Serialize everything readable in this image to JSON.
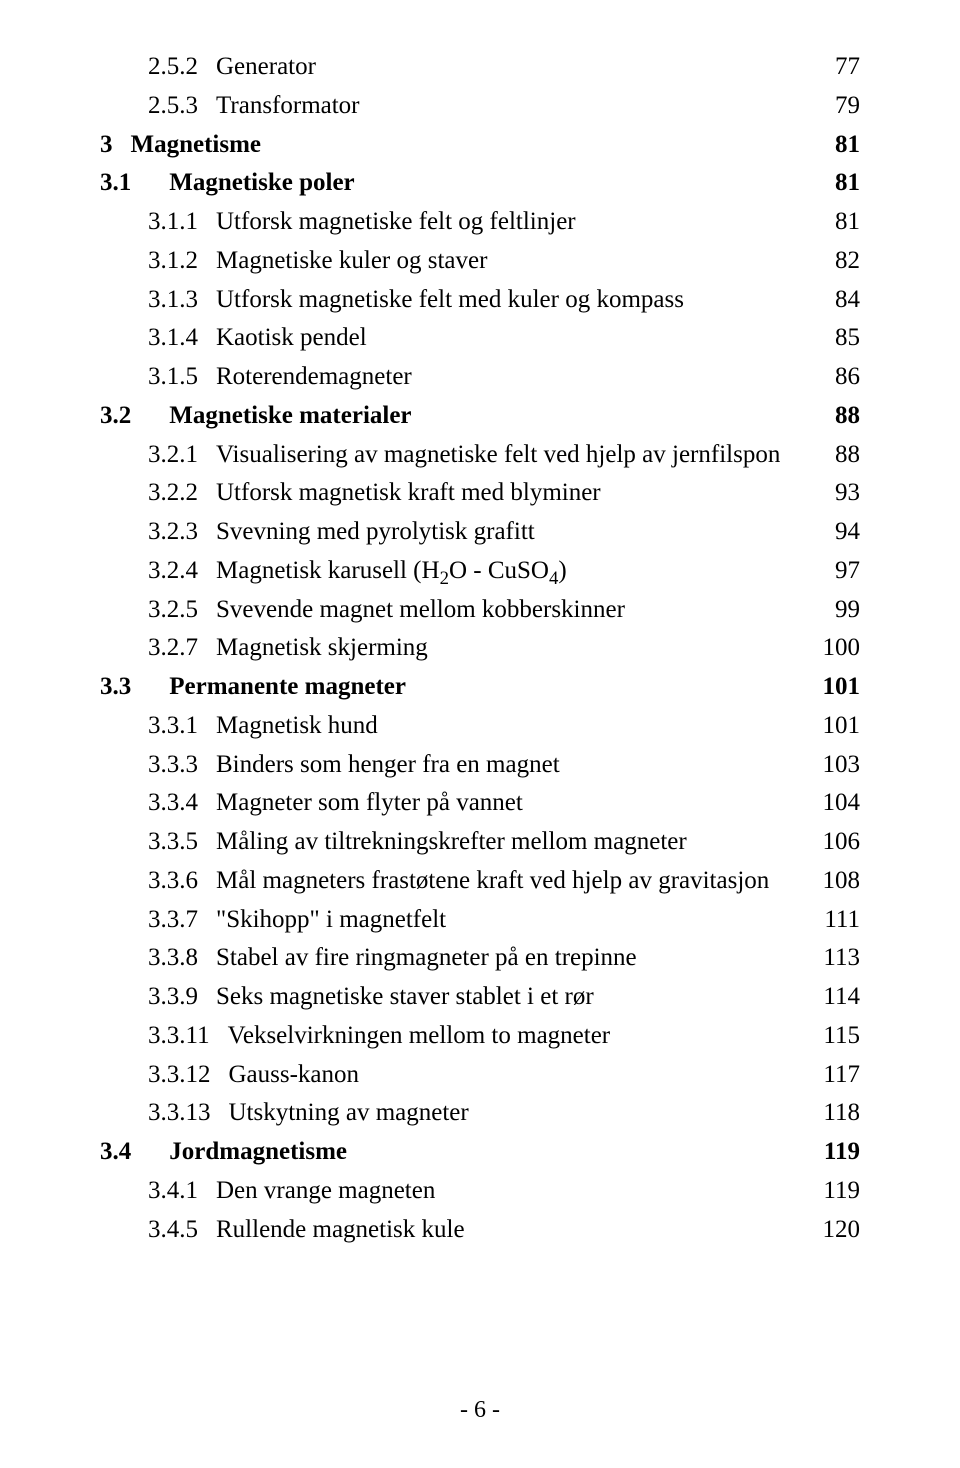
{
  "page_number_label": "- 6 -",
  "text_color": "#000000",
  "background_color": "#ffffff",
  "font_family": "Times New Roman",
  "base_font_size_pt": 19,
  "toc": [
    {
      "level": 3,
      "bold": false,
      "num": "2.5.2",
      "title": "Generator",
      "page": "77"
    },
    {
      "level": 3,
      "bold": false,
      "num": "2.5.3",
      "title": "Transformator",
      "page": "79"
    },
    {
      "level": 1,
      "bold": true,
      "num": "3",
      "title": "Magnetisme",
      "page": "81"
    },
    {
      "level": 2,
      "bold": true,
      "num": "3.1",
      "title": "Magnetiske poler",
      "page": "81"
    },
    {
      "level": 3,
      "bold": false,
      "num": "3.1.1",
      "title": "Utforsk magnetiske felt og feltlinjer",
      "page": "81"
    },
    {
      "level": 3,
      "bold": false,
      "num": "3.1.2",
      "title": "Magnetiske kuler og staver",
      "page": "82"
    },
    {
      "level": 3,
      "bold": false,
      "num": "3.1.3",
      "title": "Utforsk magnetiske felt med kuler og kompass",
      "page": "84"
    },
    {
      "level": 3,
      "bold": false,
      "num": "3.1.4",
      "title": "Kaotisk pendel",
      "page": "85"
    },
    {
      "level": 3,
      "bold": false,
      "num": "3.1.5",
      "title": "Roterendemagneter",
      "page": "86"
    },
    {
      "level": 2,
      "bold": true,
      "num": "3.2",
      "title": "Magnetiske materialer",
      "page": "88"
    },
    {
      "level": 3,
      "bold": false,
      "num": "3.2.1",
      "title": "Visualisering av magnetiske felt ved hjelp av jernfilspon",
      "page": "88"
    },
    {
      "level": 3,
      "bold": false,
      "num": "3.2.2",
      "title": "Utforsk magnetisk kraft med blyminer",
      "page": "93"
    },
    {
      "level": 3,
      "bold": false,
      "num": "3.2.3",
      "title": "Svevning med pyrolytisk grafitt",
      "page": "94"
    },
    {
      "level": 3,
      "bold": false,
      "num": "3.2.4",
      "title_html": "Magnetisk karusell (H<span class=\"sub\">2</span>O - CuSO<span class=\"sub\">4</span>)",
      "title": "Magnetisk karusell (H2O - CuSO4)",
      "page": "97"
    },
    {
      "level": 3,
      "bold": false,
      "num": "3.2.5",
      "title": "Svevende magnet mellom kobberskinner",
      "page": "99"
    },
    {
      "level": 3,
      "bold": false,
      "num": "3.2.7",
      "title": "Magnetisk skjerming",
      "page": "100"
    },
    {
      "level": 2,
      "bold": true,
      "num": "3.3",
      "title": "Permanente magneter",
      "page": "101"
    },
    {
      "level": 3,
      "bold": false,
      "num": "3.3.1",
      "title": "Magnetisk hund",
      "page": "101"
    },
    {
      "level": 3,
      "bold": false,
      "num": "3.3.3",
      "title": "Binders som henger fra en magnet",
      "page": "103"
    },
    {
      "level": 3,
      "bold": false,
      "num": "3.3.4",
      "title": "Magneter som flyter på vannet",
      "page": "104"
    },
    {
      "level": 3,
      "bold": false,
      "num": "3.3.5",
      "title": "Måling av tiltrekningskrefter mellom magneter",
      "page": "106"
    },
    {
      "level": 3,
      "bold": false,
      "num": "3.3.6",
      "title": "Mål magneters frastøtene kraft ved hjelp av gravitasjon",
      "page": "108"
    },
    {
      "level": 3,
      "bold": false,
      "num": "3.3.7",
      "title": "\"Skihopp\" i magnetfelt",
      "page": "111"
    },
    {
      "level": 3,
      "bold": false,
      "num": "3.3.8",
      "title": "Stabel av fire ringmagneter på en trepinne",
      "page": "113"
    },
    {
      "level": 3,
      "bold": false,
      "num": "3.3.9",
      "title": "Seks magnetiske staver stablet i et rør",
      "page": "114"
    },
    {
      "level": 3,
      "bold": false,
      "num": "3.3.11",
      "title": "Vekselvirkningen mellom to magneter",
      "page": "115"
    },
    {
      "level": 3,
      "bold": false,
      "num": "3.3.12",
      "title": "Gauss-kanon",
      "page": "117"
    },
    {
      "level": 3,
      "bold": false,
      "num": "3.3.13",
      "title": "Utskytning av magneter",
      "page": "118"
    },
    {
      "level": 2,
      "bold": true,
      "num": "3.4",
      "title": "Jordmagnetisme",
      "page": "119"
    },
    {
      "level": 3,
      "bold": false,
      "num": "3.4.1",
      "title": "Den vrange magneten",
      "page": "119"
    },
    {
      "level": 3,
      "bold": false,
      "num": "3.4.5",
      "title": "Rullende magnetisk kule",
      "page": "120"
    }
  ]
}
